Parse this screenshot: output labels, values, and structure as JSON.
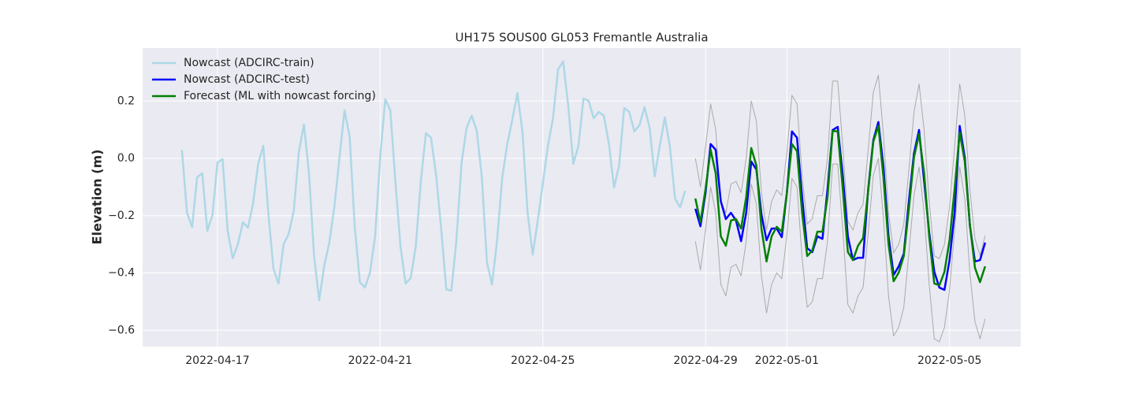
{
  "chart_data": {
    "type": "line",
    "title": "UH175 SOUS00 GL053 Fremantle Australia",
    "y_label": "Elevation (m)",
    "xlim": [
      19097.16,
      19118.75
    ],
    "xticks": [
      {
        "value": 19099,
        "label": "2022-04-17"
      },
      {
        "value": 19103,
        "label": "2022-04-21"
      },
      {
        "value": 19107,
        "label": "2022-04-25"
      },
      {
        "value": 19111,
        "label": "2022-04-29"
      },
      {
        "value": 19113,
        "label": "2022-05-01"
      },
      {
        "value": 19117,
        "label": "2022-05-05"
      }
    ],
    "ylim": [
      -0.657,
      0.385
    ],
    "yticks": [
      {
        "value": -0.6,
        "label": "−0.6"
      },
      {
        "value": -0.4,
        "label": "−0.4"
      },
      {
        "value": -0.2,
        "label": "−0.2"
      },
      {
        "value": 0,
        "label": "0.0"
      },
      0.2
    ],
    "grid": true,
    "legend": "upper left",
    "series": [
      {
        "name": "Nowcast (ADCIRC-train)",
        "color": "#add8e6",
        "width": 2.5,
        "x": [
          19098.125,
          19098.25,
          19098.375,
          19098.5,
          19098.625,
          19098.75,
          19098.875,
          19099,
          19099.125,
          19099.25,
          19099.375,
          19099.5,
          19099.625,
          19099.75,
          19099.875,
          19100,
          19100.125,
          19100.25,
          19100.375,
          19100.5,
          19100.625,
          19100.75,
          19100.875,
          19101,
          19101.125,
          19101.25,
          19101.375,
          19101.5,
          19101.625,
          19101.75,
          19101.875,
          19102,
          19102.125,
          19102.25,
          19102.375,
          19102.5,
          19102.625,
          19102.75,
          19102.875,
          19103,
          19103.125,
          19103.25,
          19103.375,
          19103.5,
          19103.625,
          19103.75,
          19103.875,
          19104,
          19104.125,
          19104.25,
          19104.375,
          19104.5,
          19104.625,
          19104.75,
          19104.875,
          19105,
          19105.125,
          19105.25,
          19105.375,
          19105.5,
          19105.625,
          19105.75,
          19105.875,
          19106,
          19106.125,
          19106.25,
          19106.375,
          19106.5,
          19106.625,
          19106.75,
          19106.875,
          19107,
          19107.125,
          19107.25,
          19107.375,
          19107.5,
          19107.625,
          19107.75,
          19107.875,
          19108,
          19108.125,
          19108.25,
          19108.375,
          19108.5,
          19108.625,
          19108.75,
          19108.875,
          19109,
          19109.125,
          19109.25,
          19109.375,
          19109.5,
          19109.625,
          19109.75,
          19109.875,
          19110,
          19110.125,
          19110.25,
          19110.375,
          19110.5
        ],
        "values": [
          0.03,
          -0.19,
          -0.24,
          -0.066,
          -0.052,
          -0.253,
          -0.198,
          -0.014,
          -0.003,
          -0.253,
          -0.349,
          -0.3,
          -0.223,
          -0.242,
          -0.157,
          -0.019,
          0.044,
          -0.19,
          -0.385,
          -0.437,
          -0.3,
          -0.264,
          -0.184,
          0.022,
          0.118,
          -0.052,
          -0.341,
          -0.495,
          -0.374,
          -0.294,
          -0.168,
          0.003,
          0.168,
          0.074,
          -0.239,
          -0.432,
          -0.451,
          -0.399,
          -0.272,
          0.003,
          0.206,
          0.168,
          -0.083,
          -0.308,
          -0.437,
          -0.418,
          -0.308,
          -0.08,
          0.088,
          0.072,
          -0.058,
          -0.245,
          -0.457,
          -0.462,
          -0.286,
          -0.017,
          0.107,
          0.149,
          0.096,
          -0.066,
          -0.363,
          -0.44,
          -0.286,
          -0.069,
          0.05,
          0.135,
          0.228,
          0.091,
          -0.19,
          -0.336,
          -0.217,
          -0.088,
          0.044,
          0.14,
          0.311,
          0.338,
          0.182,
          -0.019,
          0.044,
          0.209,
          0.201,
          0.14,
          0.162,
          0.149,
          0.05,
          -0.102,
          -0.025,
          0.176,
          0.162,
          0.094,
          0.116,
          0.179,
          0.107,
          -0.063,
          0.044,
          0.143,
          0.039,
          -0.14,
          -0.171,
          -0.113
        ]
      },
      {
        "color": "#aaaaaa",
        "width": 1,
        "x": [
          19110.75,
          19110.875,
          19111,
          19111.125,
          19111.25,
          19111.375,
          19111.5,
          19111.625,
          19111.75,
          19111.875,
          19112,
          19112.125,
          19112.25,
          19112.375,
          19112.5,
          19112.625,
          19112.75,
          19112.875,
          19113,
          19113.125,
          19113.25,
          19113.375,
          19113.5,
          19113.625,
          19113.75,
          19113.875,
          19114,
          19114.125,
          19114.25,
          19114.375,
          19114.5,
          19114.625,
          19114.75,
          19114.875,
          19115,
          19115.125,
          19115.25,
          19115.375,
          19115.5,
          19115.625,
          19115.75,
          19115.875,
          19116,
          19116.125,
          19116.25,
          19116.375,
          19116.5,
          19116.625,
          19116.75,
          19116.875,
          19117,
          19117.125,
          19117.25,
          19117.375,
          19117.5,
          19117.625,
          19117.75,
          19117.875
        ],
        "values": [
          0.0,
          -0.1,
          0.04,
          0.19,
          0.1,
          -0.15,
          -0.19,
          -0.09,
          -0.08,
          -0.12,
          0.0,
          0.2,
          0.13,
          -0.12,
          -0.25,
          -0.15,
          -0.11,
          -0.13,
          0.02,
          0.22,
          0.19,
          -0.06,
          -0.23,
          -0.21,
          -0.13,
          -0.13,
          0.0,
          0.27,
          0.27,
          0.04,
          -0.22,
          -0.25,
          -0.19,
          -0.16,
          0.03,
          0.23,
          0.29,
          0.08,
          -0.19,
          -0.33,
          -0.3,
          -0.23,
          -0.04,
          0.16,
          0.26,
          0.1,
          -0.15,
          -0.34,
          -0.35,
          -0.3,
          -0.17,
          0.04,
          0.26,
          0.15,
          -0.11,
          -0.28,
          -0.34,
          -0.27
        ]
      },
      {
        "color": "#aaaaaa",
        "width": 1,
        "x": [
          19110.75,
          19110.875,
          19111,
          19111.125,
          19111.25,
          19111.375,
          19111.5,
          19111.625,
          19111.75,
          19111.875,
          19112,
          19112.125,
          19112.25,
          19112.375,
          19112.5,
          19112.625,
          19112.75,
          19112.875,
          19113,
          19113.125,
          19113.25,
          19113.375,
          19113.5,
          19113.625,
          19113.75,
          19113.875,
          19114,
          19114.125,
          19114.25,
          19114.375,
          19114.5,
          19114.625,
          19114.75,
          19114.875,
          19115,
          19115.125,
          19115.25,
          19115.375,
          19115.5,
          19115.625,
          19115.75,
          19115.875,
          19116,
          19116.125,
          19116.25,
          19116.375,
          19116.5,
          19116.625,
          19116.75,
          19116.875,
          19117,
          19117.125,
          19117.25,
          19117.375,
          19117.5,
          19117.625,
          19117.75,
          19117.875
        ],
        "values": [
          -0.29,
          -0.39,
          -0.25,
          -0.1,
          -0.19,
          -0.44,
          -0.48,
          -0.38,
          -0.37,
          -0.41,
          -0.29,
          -0.09,
          -0.16,
          -0.41,
          -0.54,
          -0.44,
          -0.4,
          -0.42,
          -0.27,
          -0.07,
          -0.1,
          -0.35,
          -0.52,
          -0.5,
          -0.42,
          -0.42,
          -0.29,
          -0.02,
          -0.02,
          -0.25,
          -0.51,
          -0.54,
          -0.48,
          -0.45,
          -0.26,
          -0.06,
          0.0,
          -0.21,
          -0.48,
          -0.62,
          -0.59,
          -0.52,
          -0.33,
          -0.13,
          -0.03,
          -0.19,
          -0.44,
          -0.63,
          -0.64,
          -0.59,
          -0.46,
          -0.25,
          -0.03,
          -0.14,
          -0.4,
          -0.57,
          -0.63,
          -0.56
        ]
      },
      {
        "name": "Nowcast (ADCIRC-test)",
        "color": "#0000ff",
        "width": 2.5,
        "x": [
          19110.75,
          19110.875,
          19111,
          19111.125,
          19111.25,
          19111.375,
          19111.5,
          19111.625,
          19111.75,
          19111.875,
          19112,
          19112.125,
          19112.25,
          19112.375,
          19112.5,
          19112.625,
          19112.75,
          19112.875,
          19113,
          19113.125,
          19113.25,
          19113.375,
          19113.5,
          19113.625,
          19113.75,
          19113.875,
          19114,
          19114.125,
          19114.25,
          19114.375,
          19114.5,
          19114.625,
          19114.75,
          19114.875,
          19115,
          19115.125,
          19115.25,
          19115.375,
          19115.5,
          19115.625,
          19115.75,
          19115.875,
          19116,
          19116.125,
          19116.25,
          19116.375,
          19116.5,
          19116.625,
          19116.75,
          19116.875,
          19117,
          19117.125,
          19117.25,
          19117.375,
          19117.5,
          19117.625,
          19117.75,
          19117.875
        ],
        "values": [
          -0.176,
          -0.237,
          -0.121,
          0.05,
          0.03,
          -0.149,
          -0.212,
          -0.19,
          -0.217,
          -0.289,
          -0.19,
          -0.011,
          -0.039,
          -0.195,
          -0.286,
          -0.245,
          -0.245,
          -0.275,
          -0.121,
          0.094,
          0.072,
          -0.135,
          -0.314,
          -0.327,
          -0.272,
          -0.281,
          -0.107,
          0.099,
          0.11,
          -0.061,
          -0.272,
          -0.355,
          -0.347,
          -0.347,
          -0.107,
          0.063,
          0.127,
          -0.03,
          -0.272,
          -0.407,
          -0.377,
          -0.333,
          -0.149,
          0.017,
          0.099,
          -0.08,
          -0.259,
          -0.396,
          -0.451,
          -0.459,
          -0.355,
          -0.19,
          0.113,
          0.003,
          -0.234,
          -0.36,
          -0.355,
          -0.294
        ]
      },
      {
        "name": "Forecast (ML with nowcast forcing)",
        "color": "#008000",
        "width": 2.5,
        "x": [
          19110.75,
          19110.875,
          19111,
          19111.125,
          19111.25,
          19111.375,
          19111.5,
          19111.625,
          19111.75,
          19111.875,
          19112,
          19112.125,
          19112.25,
          19112.375,
          19112.5,
          19112.625,
          19112.75,
          19112.875,
          19113,
          19113.125,
          19113.25,
          19113.375,
          19113.5,
          19113.625,
          19113.75,
          19113.875,
          19114,
          19114.125,
          19114.25,
          19114.375,
          19114.5,
          19114.625,
          19114.75,
          19114.875,
          19115,
          19115.125,
          19115.25,
          19115.375,
          19115.5,
          19115.625,
          19115.75,
          19115.875,
          19116,
          19116.125,
          19116.25,
          19116.375,
          19116.5,
          19116.625,
          19116.75,
          19116.875,
          19117,
          19117.125,
          19117.25,
          19117.375,
          19117.5,
          19117.625,
          19117.75,
          19117.875
        ],
        "values": [
          -0.14,
          -0.223,
          -0.107,
          0.03,
          -0.052,
          -0.272,
          -0.305,
          -0.217,
          -0.212,
          -0.245,
          -0.135,
          0.036,
          -0.025,
          -0.245,
          -0.36,
          -0.272,
          -0.239,
          -0.256,
          -0.121,
          0.05,
          0.025,
          -0.19,
          -0.341,
          -0.322,
          -0.256,
          -0.256,
          -0.135,
          0.096,
          0.094,
          -0.107,
          -0.327,
          -0.355,
          -0.305,
          -0.278,
          -0.113,
          0.058,
          0.113,
          -0.066,
          -0.3,
          -0.429,
          -0.399,
          -0.341,
          -0.176,
          0.003,
          0.085,
          -0.052,
          -0.272,
          -0.437,
          -0.443,
          -0.396,
          -0.286,
          -0.107,
          0.091,
          -0.011,
          -0.231,
          -0.382,
          -0.432,
          -0.377
        ]
      }
    ]
  }
}
